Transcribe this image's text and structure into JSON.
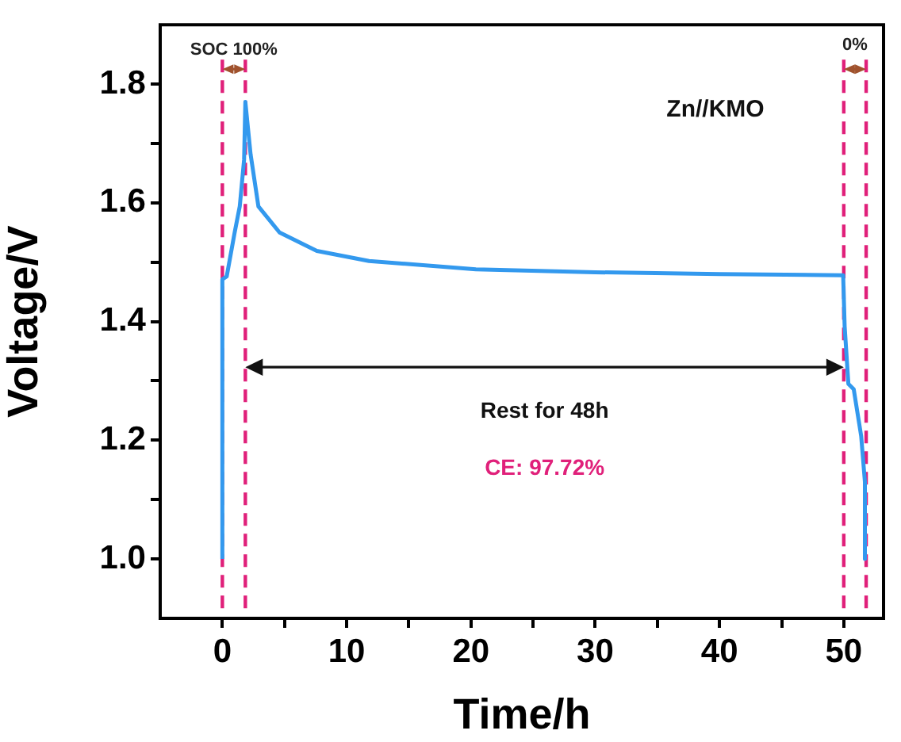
{
  "chart_data": {
    "type": "line",
    "xlabel": "Time/h",
    "ylabel": "Voltage/V",
    "x": [
      0,
      0,
      0.35,
      0.99,
      1.4,
      1.75,
      1.85,
      2.27,
      2.9,
      4.6,
      7.6,
      11.8,
      20.4,
      30,
      40,
      49.95,
      50.07,
      50.37,
      50.8,
      51.4,
      51.7,
      51.7
    ],
    "series": [
      {
        "color": "#3399ee",
        "values": [
          1.0,
          1.471,
          1.476,
          1.55,
          1.594,
          1.673,
          1.77,
          1.682,
          1.594,
          1.55,
          1.519,
          1.502,
          1.488,
          1.483,
          1.48,
          1.478,
          1.392,
          1.295,
          1.286,
          1.207,
          1.13,
          1.0
        ]
      }
    ],
    "xlim": [
      -5,
      53.2
    ],
    "xticks": [
      0,
      {
        "value": 5,
        "label": null
      },
      10,
      {
        "value": 15,
        "label": null
      },
      20,
      {
        "value": 25,
        "label": null
      },
      30,
      {
        "value": 35,
        "label": null
      },
      40,
      {
        "value": 45,
        "label": null
      },
      50
    ],
    "ylim": [
      0.9,
      1.9
    ],
    "yticks": [
      {
        "value": 1.0,
        "label": "1.0"
      },
      {
        "value": 1.1,
        "label": null
      },
      {
        "value": 1.2,
        "label": "1.2"
      },
      {
        "value": 1.3,
        "label": null
      },
      {
        "value": 1.4,
        "label": "1.4"
      },
      {
        "value": 1.5,
        "label": null
      },
      {
        "value": 1.6,
        "label": "1.6"
      },
      {
        "value": 1.7,
        "label": null
      },
      {
        "value": 1.8,
        "label": "1.8"
      }
    ],
    "ref_lines": [
      {
        "axis": "x",
        "value": 0,
        "color": "#e0207a",
        "line_style": "dashed"
      },
      {
        "axis": "x",
        "value": 1.85,
        "color": "#e0207a",
        "line_style": "dashed"
      },
      {
        "axis": "x",
        "value": 50,
        "color": "#e0207a",
        "line_style": "dashed"
      },
      {
        "axis": "x",
        "value": 51.8,
        "color": "#e0207a",
        "line_style": "dashed"
      }
    ],
    "annotations": [
      "SOC 100%",
      "0%",
      "Rest for 48h",
      "CE: 97.72%",
      "Zn//KMO"
    ],
    "grid": false,
    "legend": false,
    "marker": "none",
    "line_style": "solid"
  }
}
